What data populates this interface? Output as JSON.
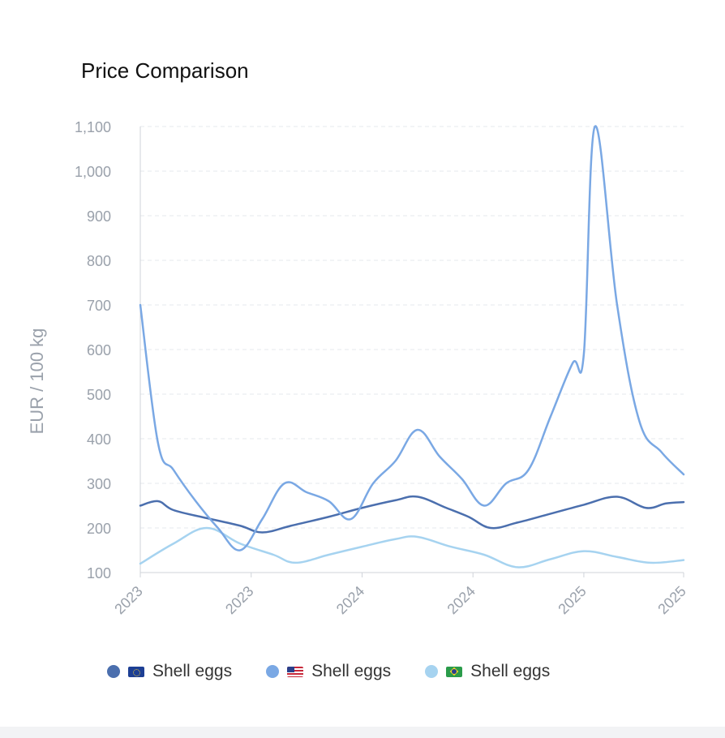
{
  "title": "Price Comparison",
  "chart_data": {
    "type": "line",
    "ylabel": "EUR / 100 kg",
    "ylim": [
      100,
      1100
    ],
    "yticks": [
      100,
      200,
      300,
      400,
      500,
      600,
      700,
      800,
      900,
      1000,
      1100
    ],
    "ytick_labels": [
      "100",
      "200",
      "300",
      "400",
      "500",
      "600",
      "700",
      "800",
      "900",
      "1,000",
      "1,100"
    ],
    "xlim": [
      0,
      24
    ],
    "xticks": [
      0,
      5,
      10,
      15,
      20,
      24.5
    ],
    "xtick_labels": [
      "2023",
      "2023",
      "2024",
      "2024",
      "2025",
      "2025"
    ],
    "grid": true,
    "legend_position": "bottom",
    "series": [
      {
        "name": "Shell eggs",
        "region": "EU",
        "flag_icon": "eu-flag-icon",
        "color": "#4b6fae",
        "x": [
          0,
          0.8,
          1.5,
          3,
          4.5,
          5.5,
          6.8,
          8.5,
          10,
          11.5,
          12.5,
          13.8,
          14.8,
          15.8,
          17,
          18.5,
          20,
          21.5,
          22.8,
          23.7,
          24.5
        ],
        "y": [
          250,
          260,
          240,
          222,
          205,
          190,
          205,
          225,
          245,
          262,
          270,
          245,
          225,
          200,
          212,
          232,
          252,
          270,
          245,
          255,
          258
        ]
      },
      {
        "name": "Shell eggs",
        "region": "US",
        "flag_icon": "us-flag-icon",
        "color": "#7aa8e4",
        "x": [
          0,
          0.8,
          1.5,
          2.5,
          3.5,
          4.5,
          5.5,
          6.5,
          7.5,
          8.5,
          9.5,
          10.5,
          11.5,
          12.5,
          13.5,
          14.5,
          15.5,
          16.5,
          17.5,
          18.5,
          19.5,
          20,
          20.5,
          21.5,
          22.5,
          23.5,
          24.5
        ],
        "y": [
          700,
          390,
          330,
          260,
          200,
          150,
          220,
          300,
          280,
          260,
          220,
          300,
          350,
          420,
          360,
          310,
          250,
          300,
          330,
          450,
          570,
          590,
          1100,
          700,
          440,
          370,
          320
        ]
      },
      {
        "name": "Shell eggs",
        "region": "BR",
        "flag_icon": "br-flag-icon",
        "color": "#a6d3f0",
        "x": [
          0,
          1.5,
          3,
          4.5,
          6,
          7,
          8.5,
          10,
          11.5,
          12.5,
          14,
          15.5,
          17,
          18.5,
          20,
          21.5,
          23,
          24.5
        ],
        "y": [
          120,
          165,
          200,
          165,
          140,
          122,
          140,
          158,
          175,
          180,
          158,
          140,
          112,
          130,
          148,
          135,
          122,
          128
        ]
      }
    ]
  },
  "legend": [
    {
      "label": "Shell eggs",
      "flag": "eu-flag-icon",
      "color": "#4b6fae"
    },
    {
      "label": "Shell eggs",
      "flag": "us-flag-icon",
      "color": "#7aa8e4"
    },
    {
      "label": "Shell eggs",
      "flag": "br-flag-icon",
      "color": "#a6d3f0"
    }
  ]
}
